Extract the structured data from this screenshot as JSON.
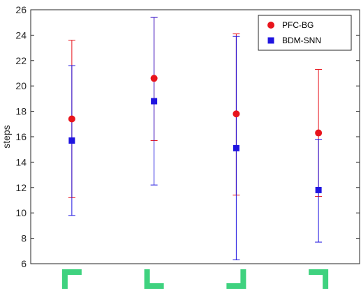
{
  "chart_data": {
    "type": "scatter",
    "ylabel": "steps",
    "ylim": [
      6,
      26
    ],
    "yticks": [
      6,
      8,
      10,
      12,
      14,
      16,
      18,
      20,
      22,
      24,
      26
    ],
    "grid": false,
    "legend_position": "top-right",
    "categories": [
      "corner-bottom-right",
      "corner-top-right",
      "corner-top-left",
      "corner-bottom-left"
    ],
    "category_icon_color": "#3fd27f",
    "series": [
      {
        "name": "PFC-BG",
        "color": "#e8141c",
        "marker": "circle",
        "values": [
          17.4,
          20.6,
          17.8,
          16.3
        ],
        "err_low": [
          11.2,
          15.7,
          11.4,
          11.3
        ],
        "err_high": [
          23.6,
          25.4,
          24.1,
          21.3
        ]
      },
      {
        "name": "BDM-SNN",
        "color": "#1f14e0",
        "marker": "square",
        "values": [
          15.7,
          18.8,
          15.1,
          11.8
        ],
        "err_low": [
          9.8,
          12.2,
          6.3,
          7.7
        ],
        "err_high": [
          21.6,
          25.4,
          23.9,
          15.8
        ]
      }
    ]
  }
}
